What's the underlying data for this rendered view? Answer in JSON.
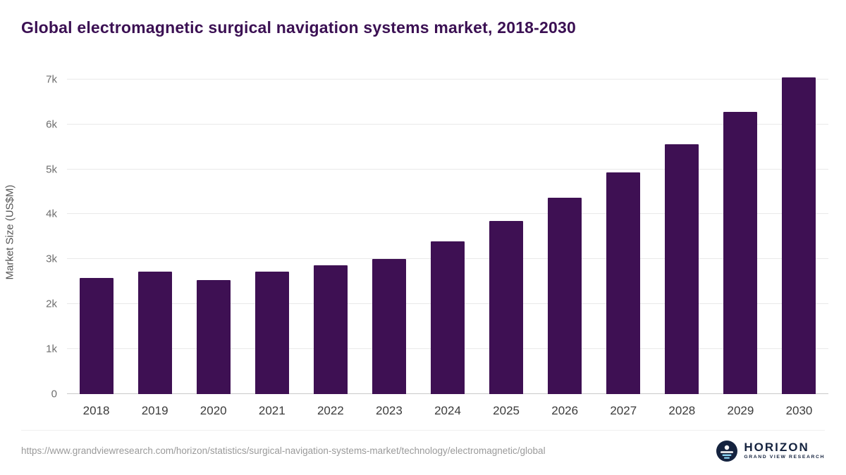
{
  "header": {
    "title": "Global electromagnetic surgical navigation systems market, 2018-2030"
  },
  "chart_data": {
    "type": "bar",
    "title": "Global electromagnetic surgical navigation systems market, 2018-2030",
    "xlabel": "",
    "ylabel": "Market Size (US$M)",
    "categories": [
      "2018",
      "2019",
      "2020",
      "2021",
      "2022",
      "2023",
      "2024",
      "2025",
      "2026",
      "2027",
      "2028",
      "2029",
      "2030"
    ],
    "values": [
      2580,
      2730,
      2530,
      2720,
      2860,
      3000,
      3400,
      3850,
      4360,
      4930,
      5550,
      6270,
      7050
    ],
    "ylim": [
      0,
      7200
    ],
    "yticks": [
      {
        "label": "0",
        "value": 0
      },
      {
        "label": "1k",
        "value": 1000
      },
      {
        "label": "2k",
        "value": 2000
      },
      {
        "label": "3k",
        "value": 3000
      },
      {
        "label": "4k",
        "value": 4000
      },
      {
        "label": "5k",
        "value": 5000
      },
      {
        "label": "6k",
        "value": 6000
      },
      {
        "label": "7k",
        "value": 7000
      }
    ],
    "grid": true,
    "legend": false,
    "bar_color": "#3e1053",
    "title_color": "#3b1053"
  },
  "footer": {
    "source_url": "https://www.grandviewresearch.com/horizon/statistics/surgical-navigation-systems-market/technology/electromagnetic/global",
    "logo": {
      "name": "HORIZON",
      "subtext": "GRAND VIEW RESEARCH",
      "navy": "#15233f",
      "light_blue": "#8ed8f8"
    }
  }
}
